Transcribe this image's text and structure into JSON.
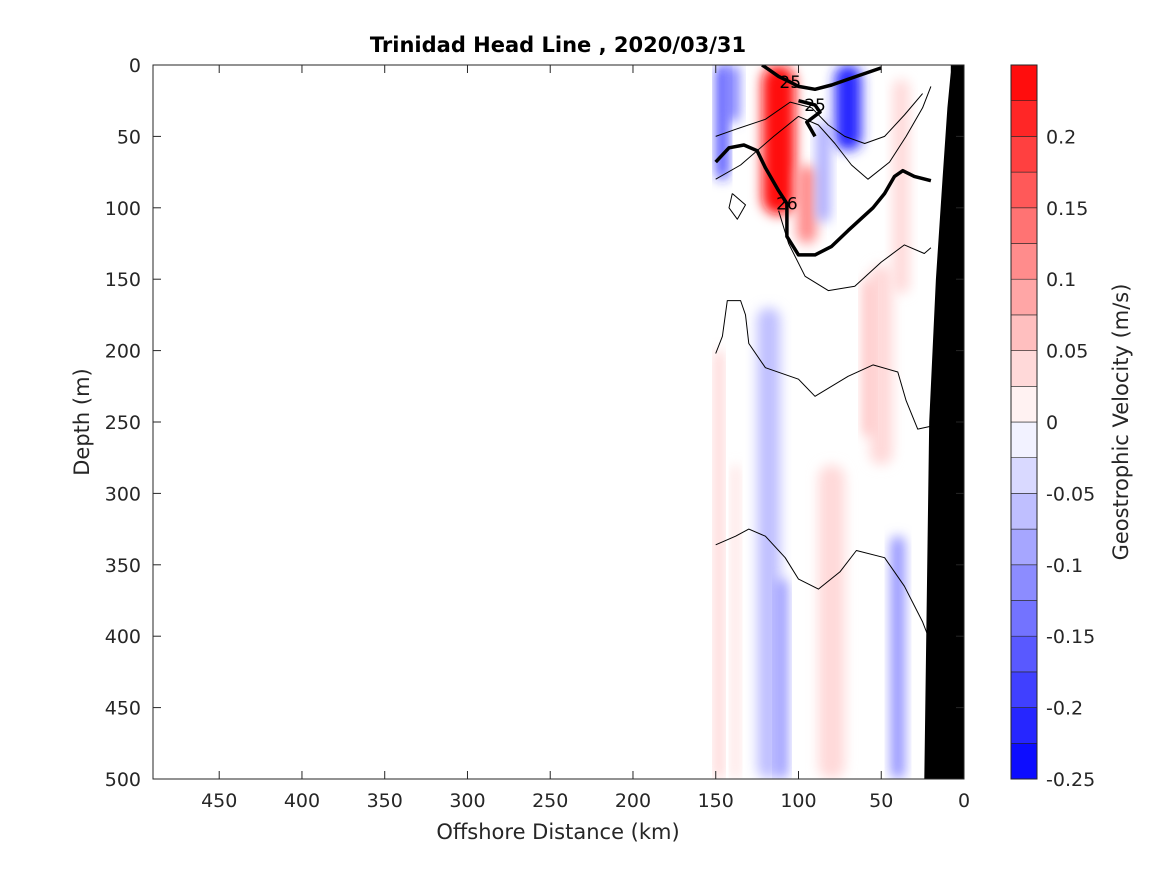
{
  "chart_data": {
    "type": "heatmap",
    "title": "Trinidad Head Line , 2020/03/31",
    "xlabel": "Offshore Distance (km)",
    "ylabel": "Depth (m)",
    "colorbar_label": "Geostrophic Velocity (m/s)",
    "xlim": [
      490,
      0
    ],
    "ylim": [
      0,
      500
    ],
    "x_ticks": [
      450,
      400,
      350,
      300,
      250,
      200,
      150,
      100,
      50,
      0
    ],
    "y_ticks": [
      0,
      50,
      100,
      150,
      200,
      250,
      300,
      350,
      400,
      450,
      500
    ],
    "colorbar_ticks": [
      0.2,
      0.15,
      0.1,
      0.05,
      0,
      -0.05,
      -0.1,
      -0.15,
      -0.2,
      -0.25
    ],
    "colorbar_range": [
      -0.25,
      0.25
    ],
    "colormap": {
      "negative": "#0000ff",
      "zero": "#ffffff",
      "positive": "#ff0000"
    },
    "velocity_features": [
      {
        "x_center": 112,
        "x_width": 20,
        "depth_top": 0,
        "depth_bottom": 105,
        "value": 0.25
      },
      {
        "x_center": 95,
        "x_width": 12,
        "depth_top": 70,
        "depth_bottom": 125,
        "value": 0.12
      },
      {
        "x_center": 146,
        "x_width": 6,
        "depth_top": 0,
        "depth_bottom": 80,
        "value": -0.22
      },
      {
        "x_center": 140,
        "x_width": 8,
        "depth_top": 0,
        "depth_bottom": 40,
        "value": -0.15
      },
      {
        "x_center": 70,
        "x_width": 16,
        "depth_top": 0,
        "depth_bottom": 60,
        "value": -0.2
      },
      {
        "x_center": 85,
        "x_width": 8,
        "depth_top": 40,
        "depth_bottom": 110,
        "value": -0.08
      },
      {
        "x_center": 38,
        "x_width": 10,
        "depth_top": 10,
        "depth_bottom": 160,
        "value": 0.04
      },
      {
        "x_center": 50,
        "x_width": 14,
        "depth_top": 140,
        "depth_bottom": 280,
        "value": 0.05
      },
      {
        "x_center": 80,
        "x_width": 16,
        "depth_top": 280,
        "depth_bottom": 500,
        "value": 0.04
      },
      {
        "x_center": 118,
        "x_width": 14,
        "depth_top": 170,
        "depth_bottom": 500,
        "value": -0.06
      },
      {
        "x_center": 110,
        "x_width": 6,
        "depth_top": 360,
        "depth_bottom": 500,
        "value": -0.11
      },
      {
        "x_center": 148,
        "x_width": 4,
        "depth_top": 200,
        "depth_bottom": 500,
        "value": 0.06
      },
      {
        "x_center": 138,
        "x_width": 4,
        "depth_top": 280,
        "depth_bottom": 500,
        "value": 0.04
      },
      {
        "x_center": 40,
        "x_width": 8,
        "depth_top": 330,
        "depth_bottom": 500,
        "value": -0.1
      },
      {
        "x_center": 58,
        "x_width": 6,
        "depth_top": 150,
        "depth_bottom": 260,
        "value": 0.07
      }
    ],
    "density_contours": [
      {
        "level": 25,
        "bold": true,
        "label": "25",
        "points": [
          [
            122,
            0
          ],
          [
            117,
            4
          ],
          [
            112,
            8
          ],
          [
            105,
            12
          ],
          [
            100,
            15
          ],
          [
            90,
            17
          ],
          [
            80,
            14
          ],
          [
            65,
            8
          ],
          [
            50,
            2
          ]
        ]
      },
      {
        "level": 25,
        "bold": true,
        "label": "25",
        "points": [
          [
            100,
            25
          ],
          [
            90,
            28
          ],
          [
            87,
            33
          ],
          [
            95,
            40
          ],
          [
            90,
            50
          ]
        ]
      },
      {
        "level": 26,
        "bold": true,
        "label": "26",
        "points": [
          [
            150,
            68
          ],
          [
            142,
            58
          ],
          [
            133,
            56
          ],
          [
            125,
            60
          ],
          [
            120,
            72
          ],
          [
            112,
            88
          ],
          [
            107,
            97
          ],
          [
            107,
            120
          ],
          [
            100,
            133
          ],
          [
            90,
            133
          ],
          [
            80,
            127
          ],
          [
            70,
            116
          ],
          [
            55,
            100
          ],
          [
            48,
            90
          ],
          [
            42,
            78
          ],
          [
            37,
            74
          ],
          [
            30,
            78
          ],
          [
            20,
            81
          ]
        ]
      },
      {
        "level": 25.5,
        "bold": false,
        "points": [
          [
            150,
            80
          ],
          [
            135,
            70
          ],
          [
            115,
            50
          ],
          [
            100,
            36
          ],
          [
            88,
            42
          ],
          [
            78,
            55
          ],
          [
            68,
            70
          ],
          [
            58,
            80
          ],
          [
            45,
            68
          ],
          [
            35,
            50
          ],
          [
            25,
            30
          ],
          [
            20,
            15
          ]
        ]
      },
      {
        "level": 25.3,
        "bold": false,
        "points": [
          [
            150,
            50
          ],
          [
            138,
            45
          ],
          [
            120,
            38
          ],
          [
            105,
            26
          ],
          [
            92,
            30
          ],
          [
            82,
            42
          ],
          [
            72,
            50
          ],
          [
            60,
            55
          ],
          [
            48,
            50
          ],
          [
            36,
            35
          ],
          [
            25,
            20
          ]
        ]
      },
      {
        "level": 26.2,
        "bold": false,
        "points": [
          [
            140,
            90
          ],
          [
            132,
            98
          ],
          [
            137,
            108
          ],
          [
            142,
            100
          ],
          [
            140,
            90
          ]
        ]
      },
      {
        "level": 26.3,
        "bold": false,
        "points": [
          [
            112,
            102
          ],
          [
            106,
            125
          ],
          [
            96,
            148
          ],
          [
            82,
            158
          ],
          [
            66,
            155
          ],
          [
            50,
            138
          ],
          [
            36,
            126
          ],
          [
            24,
            132
          ],
          [
            20,
            128
          ]
        ]
      },
      {
        "level": 26.5,
        "bold": false,
        "points": [
          [
            150,
            202
          ],
          [
            146,
            190
          ],
          [
            143,
            165
          ],
          [
            135,
            165
          ],
          [
            132,
            175
          ],
          [
            130,
            195
          ],
          [
            120,
            212
          ],
          [
            100,
            220
          ],
          [
            90,
            232
          ],
          [
            70,
            218
          ],
          [
            55,
            210
          ],
          [
            40,
            215
          ],
          [
            35,
            235
          ],
          [
            28,
            255
          ],
          [
            20,
            253
          ]
        ]
      },
      {
        "level": 26.8,
        "bold": false,
        "points": [
          [
            150,
            336
          ],
          [
            138,
            330
          ],
          [
            130,
            325
          ],
          [
            120,
            330
          ],
          [
            108,
            345
          ],
          [
            100,
            360
          ],
          [
            88,
            367
          ],
          [
            75,
            355
          ],
          [
            65,
            340
          ],
          [
            48,
            345
          ],
          [
            36,
            365
          ],
          [
            25,
            390
          ],
          [
            20,
            405
          ]
        ]
      }
    ],
    "bathymetry": [
      [
        24,
        500
      ],
      [
        21,
        250
      ],
      [
        17,
        150
      ],
      [
        13,
        80
      ],
      [
        10,
        30
      ],
      [
        8,
        5
      ],
      [
        8,
        0
      ],
      [
        0,
        0
      ],
      [
        0,
        500
      ]
    ],
    "data_extent": {
      "x_min": 0,
      "x_max": 150
    }
  }
}
